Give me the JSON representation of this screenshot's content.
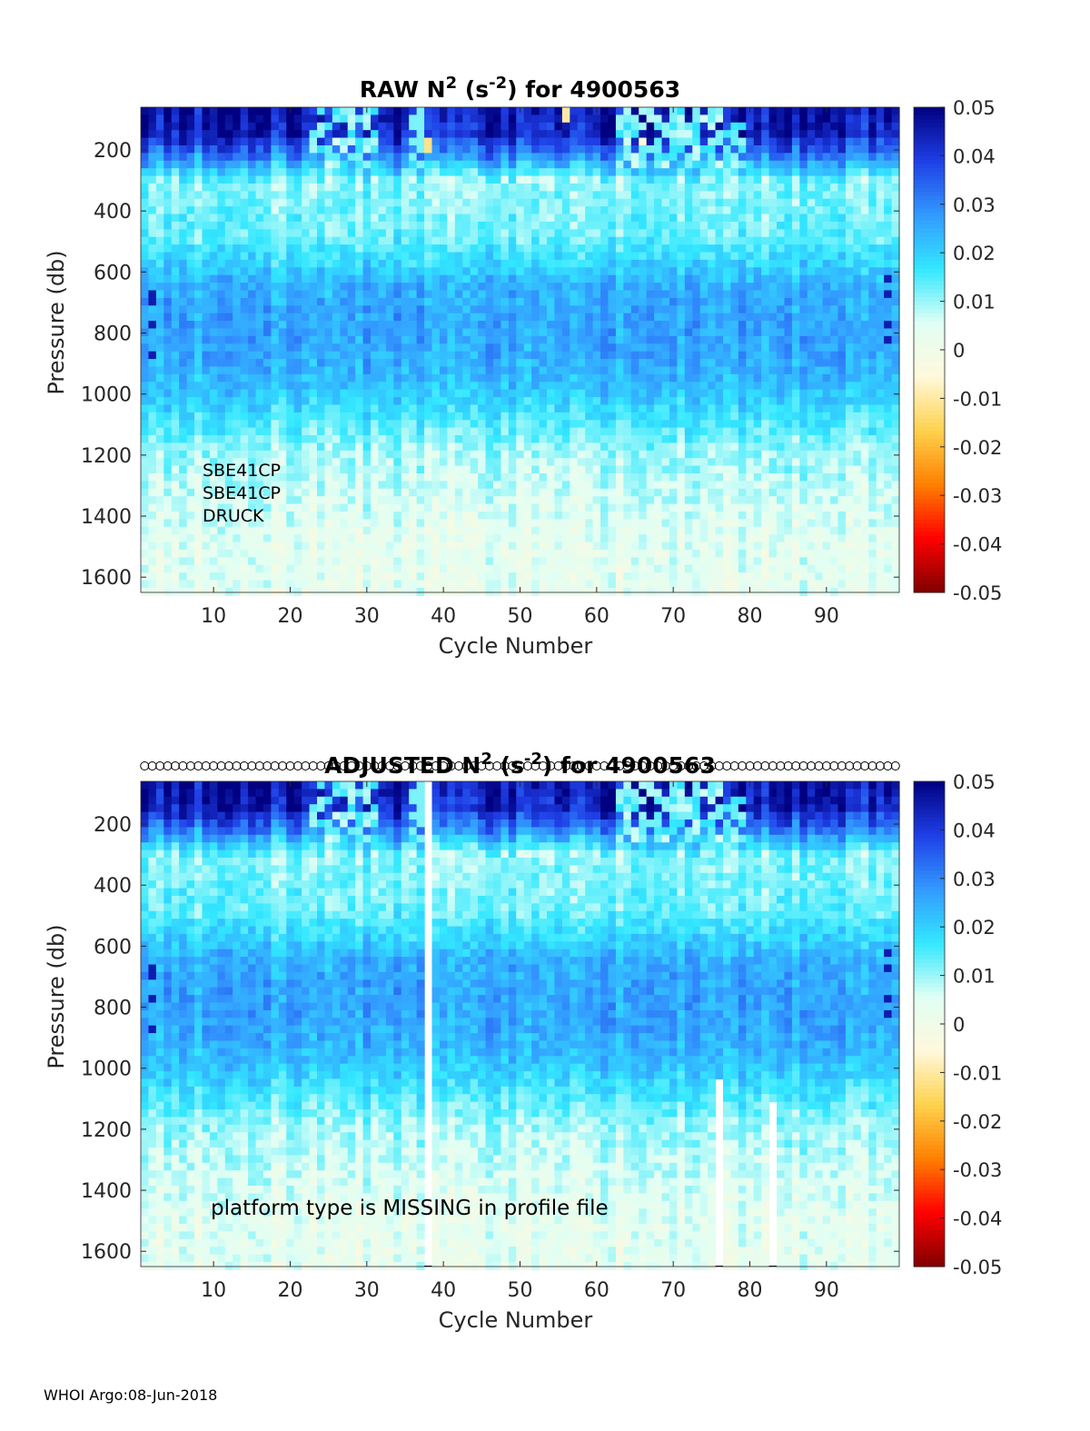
{
  "footer": "WHOI Argo:08-Jun-2018",
  "chart_data": [
    {
      "type": "heatmap",
      "title": {
        "prefix": "RAW N",
        "sup1": "2",
        "mid": " (s",
        "sup2": "-2",
        "suffix": ") for 4900563"
      },
      "xlabel": "Cycle Number",
      "ylabel": "Pressure (db)",
      "xlim": [
        1,
        99
      ],
      "ylim": [
        1650,
        60
      ],
      "y_reversed": true,
      "xticks": [
        10,
        20,
        30,
        40,
        50,
        60,
        70,
        80,
        90
      ],
      "yticks": [
        200,
        400,
        600,
        800,
        1000,
        1200,
        1400,
        1600
      ],
      "colorbar": {
        "range": [
          -0.05,
          0.05
        ],
        "ticks": [
          "0.05",
          "0.04",
          "0.03",
          "0.02",
          "0.01",
          "0",
          "-0.01",
          "-0.02",
          "-0.03",
          "-0.04",
          "-0.05"
        ],
        "colors": [
          "#800000",
          "#ff0000",
          "#ff8000",
          "#ffd24d",
          "#fff8dc",
          "#e0fff4",
          "#33e8ff",
          "#3399ff",
          "#1f3fe6",
          "#000080"
        ]
      },
      "annotations": [
        "SBE41CP",
        "SBE41CP",
        "DRUCK"
      ],
      "gaps": [],
      "negative_spots": [
        {
          "cycle": 38,
          "pressure": 170,
          "value": -0.012
        },
        {
          "cycle": 56,
          "pressure": 75,
          "value": -0.01
        },
        {
          "cycle": 66,
          "pressure": 160,
          "value": -0.005
        }
      ]
    },
    {
      "type": "heatmap",
      "title": {
        "prefix": "ADJUSTED N",
        "sup1": "2",
        "mid": " (s",
        "sup2": "-2",
        "suffix": ") for 4900563"
      },
      "xlabel": "Cycle Number",
      "ylabel": "Pressure (db)",
      "xlim": [
        1,
        99
      ],
      "ylim": [
        1650,
        60
      ],
      "y_reversed": true,
      "xticks": [
        10,
        20,
        30,
        40,
        50,
        60,
        70,
        80,
        90
      ],
      "yticks": [
        200,
        400,
        600,
        800,
        1000,
        1200,
        1400,
        1600
      ],
      "colorbar": {
        "range": [
          -0.05,
          0.05
        ],
        "ticks": [
          "0.05",
          "0.04",
          "0.03",
          "0.02",
          "0.01",
          "0",
          "-0.01",
          "-0.02",
          "-0.03",
          "-0.04",
          "-0.05"
        ],
        "colors": [
          "#800000",
          "#ff0000",
          "#ff8000",
          "#ffd24d",
          "#fff8dc",
          "#e0fff4",
          "#33e8ff",
          "#3399ff",
          "#1f3fe6",
          "#000080"
        ]
      },
      "annotations": [
        "platform type is MISSING in profile file"
      ],
      "profile_markers": "open circles at every cycle along the top",
      "gaps": [
        {
          "cycle": 38,
          "from_pressure": 60
        },
        {
          "cycle": 76,
          "from_pressure": 1050
        },
        {
          "cycle": 83,
          "from_pressure": 1110
        }
      ],
      "negative_spots": []
    }
  ]
}
